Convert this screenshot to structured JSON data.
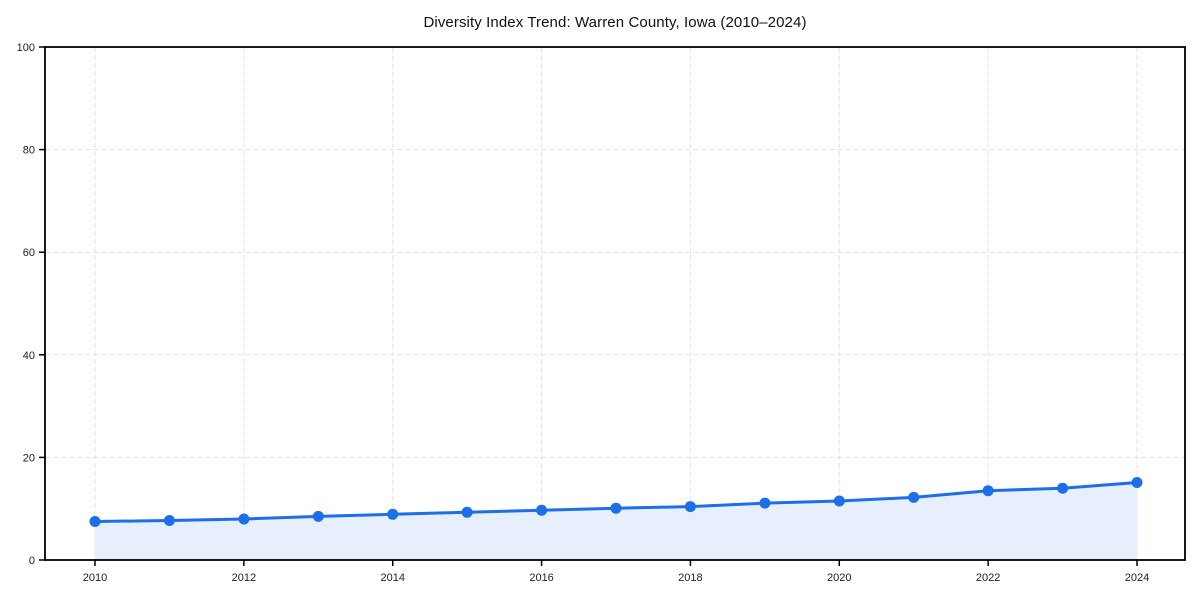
{
  "chart_data": {
    "type": "line",
    "title": "Diversity Index Trend: Warren County, Iowa (2010–2024)",
    "x": [
      2010,
      2011,
      2012,
      2013,
      2014,
      2015,
      2016,
      2017,
      2018,
      2019,
      2020,
      2021,
      2022,
      2023,
      2024
    ],
    "series": [
      {
        "name": "Diversity Index",
        "values": [
          7.5,
          7.7,
          8.0,
          8.5,
          8.9,
          9.3,
          9.7,
          10.1,
          10.4,
          11.1,
          11.5,
          12.2,
          13.5,
          14.0,
          15.1
        ]
      }
    ],
    "xlabel": "",
    "ylabel": "",
    "ylim": [
      0,
      100
    ],
    "yticks": [
      0,
      20,
      40,
      60,
      80,
      100
    ],
    "xticks": [
      2010,
      2012,
      2014,
      2016,
      2018,
      2020,
      2022,
      2024
    ],
    "grid": true,
    "grid_style": "dashed",
    "legend": "none",
    "area_fill": true,
    "marker": "circle",
    "colors": {
      "line": "#1d6fe8",
      "marker": "#1d6fe8",
      "fill": "#e7effc",
      "grid": "#e3e3e7",
      "axis": "#000000",
      "tick_label": "#222222",
      "title": "#111111"
    }
  }
}
